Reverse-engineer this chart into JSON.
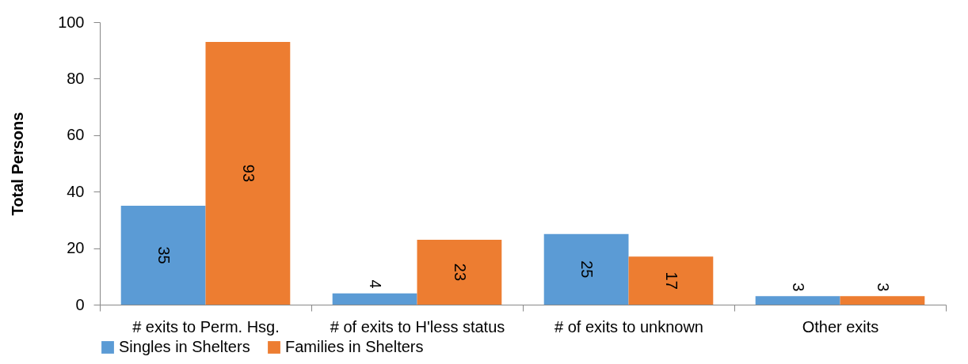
{
  "chart_data": {
    "type": "bar",
    "ylabel": "Total Persons",
    "categories": [
      "# exits to Perm. Hsg.",
      "# of exits to H'less status",
      "# of exits to unknown",
      "Other exits"
    ],
    "series": [
      {
        "name": "Singles in Shelters",
        "color": "#5b9bd5",
        "values": [
          35,
          4,
          25,
          3
        ]
      },
      {
        "name": "Families in Shelters",
        "color": "#ed7d31",
        "values": [
          93,
          23,
          17,
          3
        ]
      }
    ],
    "ylim": [
      0,
      100
    ],
    "yticks": [
      0,
      20,
      40,
      60,
      80,
      100
    ],
    "grid": false,
    "legend": "bottom",
    "data_labels": true
  }
}
